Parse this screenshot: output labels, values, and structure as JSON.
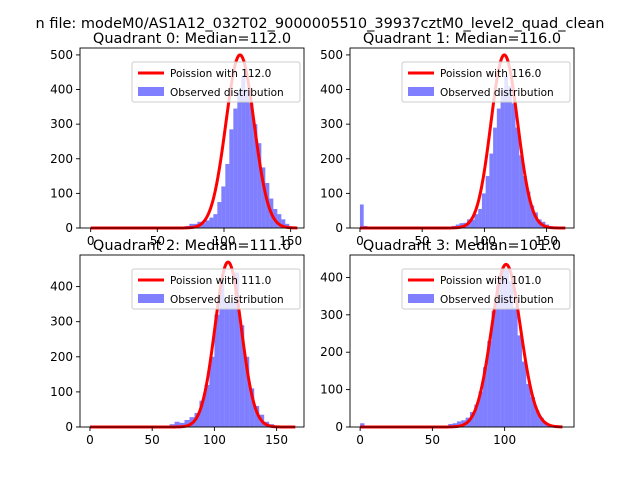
{
  "figure": {
    "suptitle": "n file: modeM0/AS1A12_032T02_9000005510_39937cztM0_level2_quad_clean"
  },
  "colors": {
    "hist": "#0000ff",
    "poisson": "#ff0000",
    "axis": "#000000"
  },
  "chart_data": [
    {
      "type": "bar",
      "title": "Quadrant 0: Median=112.0",
      "xlabel": "",
      "ylabel": "",
      "xlim": [
        -8,
        160
      ],
      "ylim": [
        0,
        520
      ],
      "xticks": [
        0,
        50,
        100,
        150
      ],
      "yticks": [
        0,
        100,
        200,
        300,
        400,
        500
      ],
      "legend_position": "top-right",
      "legend": [
        "Poission with 112.0",
        "Observed distribution"
      ],
      "series": [
        {
          "name": "Observed distribution",
          "bins": [
            {
              "x0": 64,
              "x1": 68,
              "y": 2
            },
            {
              "x0": 68,
              "x1": 71,
              "y": 4
            },
            {
              "x0": 71,
              "x1": 74,
              "y": 6
            },
            {
              "x0": 74,
              "x1": 77,
              "y": 12
            },
            {
              "x0": 77,
              "x1": 80,
              "y": 12
            },
            {
              "x0": 80,
              "x1": 83,
              "y": 18
            },
            {
              "x0": 83,
              "x1": 86,
              "y": 14
            },
            {
              "x0": 86,
              "x1": 89,
              "y": 22
            },
            {
              "x0": 89,
              "x1": 92,
              "y": 30
            },
            {
              "x0": 92,
              "x1": 95,
              "y": 40
            },
            {
              "x0": 95,
              "x1": 98,
              "y": 75
            },
            {
              "x0": 98,
              "x1": 101,
              "y": 120
            },
            {
              "x0": 101,
              "x1": 104,
              "y": 185
            },
            {
              "x0": 104,
              "x1": 107,
              "y": 285
            },
            {
              "x0": 107,
              "x1": 110,
              "y": 345
            },
            {
              "x0": 110,
              "x1": 113,
              "y": 395
            },
            {
              "x0": 113,
              "x1": 116,
              "y": 440
            },
            {
              "x0": 116,
              "x1": 119,
              "y": 400
            },
            {
              "x0": 119,
              "x1": 122,
              "y": 360
            },
            {
              "x0": 122,
              "x1": 125,
              "y": 300
            },
            {
              "x0": 125,
              "x1": 128,
              "y": 245
            },
            {
              "x0": 128,
              "x1": 131,
              "y": 175
            },
            {
              "x0": 131,
              "x1": 134,
              "y": 130
            },
            {
              "x0": 134,
              "x1": 137,
              "y": 85
            },
            {
              "x0": 137,
              "x1": 140,
              "y": 55
            },
            {
              "x0": 140,
              "x1": 143,
              "y": 40
            },
            {
              "x0": 143,
              "x1": 146,
              "y": 25
            },
            {
              "x0": 146,
              "x1": 149,
              "y": 12
            },
            {
              "x0": 149,
              "x1": 152,
              "y": 5
            }
          ]
        },
        {
          "name": "Poission with 112.0",
          "mean": 112.0,
          "peak": 500,
          "x_range": [
            0,
            155
          ]
        }
      ]
    },
    {
      "type": "bar",
      "title": "Quadrant 1: Median=116.0",
      "xlabel": "",
      "ylabel": "",
      "xlim": [
        -8,
        172
      ],
      "ylim": [
        0,
        520
      ],
      "xticks": [
        0,
        50,
        100,
        150
      ],
      "yticks": [
        0,
        100,
        200,
        300,
        400,
        500
      ],
      "legend_position": "top-right",
      "legend": [
        "Poission with 116.0",
        "Observed distribution"
      ],
      "series": [
        {
          "name": "Observed distribution",
          "bins": [
            {
              "x0": 0,
              "x1": 3,
              "y": 68
            },
            {
              "x0": 3,
              "x1": 6,
              "y": 6
            },
            {
              "x0": 68,
              "x1": 71,
              "y": 2
            },
            {
              "x0": 71,
              "x1": 74,
              "y": 4
            },
            {
              "x0": 74,
              "x1": 77,
              "y": 6
            },
            {
              "x0": 77,
              "x1": 80,
              "y": 10
            },
            {
              "x0": 80,
              "x1": 83,
              "y": 14
            },
            {
              "x0": 83,
              "x1": 86,
              "y": 15
            },
            {
              "x0": 86,
              "x1": 89,
              "y": 25
            },
            {
              "x0": 89,
              "x1": 92,
              "y": 24
            },
            {
              "x0": 92,
              "x1": 95,
              "y": 40
            },
            {
              "x0": 95,
              "x1": 98,
              "y": 55
            },
            {
              "x0": 98,
              "x1": 101,
              "y": 100
            },
            {
              "x0": 101,
              "x1": 104,
              "y": 150
            },
            {
              "x0": 104,
              "x1": 107,
              "y": 215
            },
            {
              "x0": 107,
              "x1": 110,
              "y": 290
            },
            {
              "x0": 110,
              "x1": 113,
              "y": 345
            },
            {
              "x0": 113,
              "x1": 116,
              "y": 400
            },
            {
              "x0": 116,
              "x1": 119,
              "y": 440
            },
            {
              "x0": 119,
              "x1": 122,
              "y": 410
            },
            {
              "x0": 122,
              "x1": 125,
              "y": 360
            },
            {
              "x0": 125,
              "x1": 128,
              "y": 290
            },
            {
              "x0": 128,
              "x1": 131,
              "y": 210
            },
            {
              "x0": 131,
              "x1": 134,
              "y": 150
            },
            {
              "x0": 134,
              "x1": 137,
              "y": 105
            },
            {
              "x0": 137,
              "x1": 140,
              "y": 65
            },
            {
              "x0": 140,
              "x1": 143,
              "y": 45
            },
            {
              "x0": 143,
              "x1": 146,
              "y": 25
            },
            {
              "x0": 146,
              "x1": 149,
              "y": 18
            },
            {
              "x0": 149,
              "x1": 152,
              "y": 10
            },
            {
              "x0": 152,
              "x1": 155,
              "y": 5
            }
          ]
        },
        {
          "name": "Poission with 116.0",
          "mean": 116.0,
          "peak": 500,
          "x_range": [
            0,
            165
          ]
        }
      ]
    },
    {
      "type": "bar",
      "title": "Quadrant 2: Median=111.0",
      "xlabel": "",
      "ylabel": "",
      "xlim": [
        -8,
        172
      ],
      "ylim": [
        0,
        490
      ],
      "xticks": [
        0,
        50,
        100,
        150
      ],
      "yticks": [
        0,
        100,
        200,
        300,
        400
      ],
      "legend_position": "top-right",
      "legend": [
        "Poission with 111.0",
        "Observed distribution"
      ],
      "series": [
        {
          "name": "Observed distribution",
          "bins": [
            {
              "x0": 56,
              "x1": 60,
              "y": 2
            },
            {
              "x0": 60,
              "x1": 64,
              "y": 4
            },
            {
              "x0": 64,
              "x1": 68,
              "y": 8
            },
            {
              "x0": 68,
              "x1": 72,
              "y": 15
            },
            {
              "x0": 72,
              "x1": 76,
              "y": 12
            },
            {
              "x0": 76,
              "x1": 80,
              "y": 20
            },
            {
              "x0": 80,
              "x1": 84,
              "y": 28
            },
            {
              "x0": 84,
              "x1": 88,
              "y": 40
            },
            {
              "x0": 88,
              "x1": 92,
              "y": 75
            },
            {
              "x0": 92,
              "x1": 96,
              "y": 120
            },
            {
              "x0": 96,
              "x1": 100,
              "y": 200
            },
            {
              "x0": 100,
              "x1": 104,
              "y": 320
            },
            {
              "x0": 104,
              "x1": 108,
              "y": 420
            },
            {
              "x0": 108,
              "x1": 112,
              "y": 355
            },
            {
              "x0": 112,
              "x1": 116,
              "y": 355
            },
            {
              "x0": 116,
              "x1": 120,
              "y": 440
            },
            {
              "x0": 120,
              "x1": 124,
              "y": 290
            },
            {
              "x0": 124,
              "x1": 128,
              "y": 200
            },
            {
              "x0": 128,
              "x1": 132,
              "y": 110
            },
            {
              "x0": 132,
              "x1": 136,
              "y": 60
            },
            {
              "x0": 136,
              "x1": 140,
              "y": 35
            },
            {
              "x0": 140,
              "x1": 144,
              "y": 15
            },
            {
              "x0": 144,
              "x1": 148,
              "y": 8
            },
            {
              "x0": 148,
              "x1": 152,
              "y": 4
            }
          ]
        },
        {
          "name": "Poission with 111.0",
          "mean": 111.0,
          "peak": 470,
          "x_range": [
            0,
            165
          ]
        }
      ]
    },
    {
      "type": "bar",
      "title": "Quadrant 3: Median=101.0",
      "xlabel": "",
      "ylabel": "",
      "xlim": [
        -7,
        148
      ],
      "ylim": [
        0,
        460
      ],
      "xticks": [
        0,
        50,
        100
      ],
      "yticks": [
        0,
        100,
        200,
        300,
        400
      ],
      "legend_position": "top-right",
      "legend": [
        "Poission with 101.0",
        "Observed distribution"
      ],
      "series": [
        {
          "name": "Observed distribution",
          "bins": [
            {
              "x0": 0,
              "x1": 3,
              "y": 10
            },
            {
              "x0": 3,
              "x1": 6,
              "y": 3
            },
            {
              "x0": 55,
              "x1": 58,
              "y": 2
            },
            {
              "x0": 58,
              "x1": 61,
              "y": 4
            },
            {
              "x0": 61,
              "x1": 64,
              "y": 8
            },
            {
              "x0": 64,
              "x1": 67,
              "y": 10
            },
            {
              "x0": 67,
              "x1": 70,
              "y": 15
            },
            {
              "x0": 70,
              "x1": 73,
              "y": 18
            },
            {
              "x0": 73,
              "x1": 76,
              "y": 25
            },
            {
              "x0": 76,
              "x1": 79,
              "y": 40
            },
            {
              "x0": 79,
              "x1": 82,
              "y": 60
            },
            {
              "x0": 82,
              "x1": 85,
              "y": 95
            },
            {
              "x0": 85,
              "x1": 88,
              "y": 160
            },
            {
              "x0": 88,
              "x1": 91,
              "y": 230
            },
            {
              "x0": 91,
              "x1": 94,
              "y": 310
            },
            {
              "x0": 94,
              "x1": 97,
              "y": 380
            },
            {
              "x0": 97,
              "x1": 100,
              "y": 420
            },
            {
              "x0": 100,
              "x1": 103,
              "y": 420
            },
            {
              "x0": 103,
              "x1": 106,
              "y": 390
            },
            {
              "x0": 106,
              "x1": 109,
              "y": 320
            },
            {
              "x0": 109,
              "x1": 112,
              "y": 245
            },
            {
              "x0": 112,
              "x1": 115,
              "y": 175
            },
            {
              "x0": 115,
              "x1": 118,
              "y": 115
            },
            {
              "x0": 118,
              "x1": 121,
              "y": 80
            },
            {
              "x0": 121,
              "x1": 124,
              "y": 45
            },
            {
              "x0": 124,
              "x1": 127,
              "y": 25
            },
            {
              "x0": 127,
              "x1": 130,
              "y": 12
            },
            {
              "x0": 130,
              "x1": 133,
              "y": 5
            }
          ]
        },
        {
          "name": "Poission with 101.0",
          "mean": 101.0,
          "peak": 435,
          "x_range": [
            0,
            140
          ]
        }
      ]
    }
  ]
}
